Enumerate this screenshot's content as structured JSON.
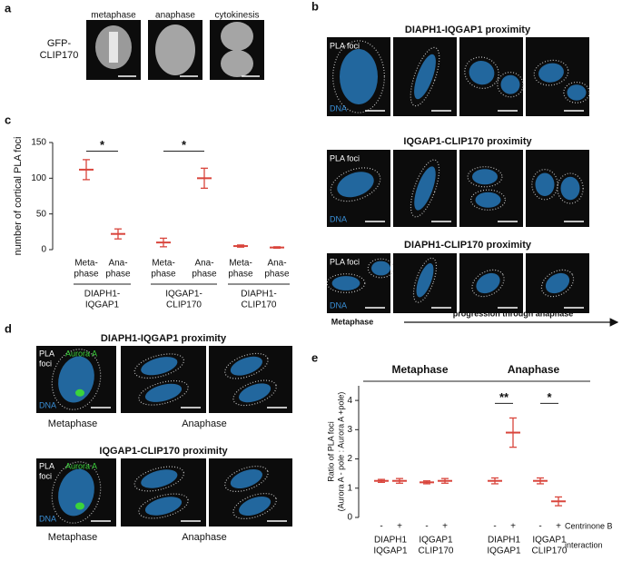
{
  "panel_labels": [
    "a",
    "b",
    "c",
    "d",
    "e"
  ],
  "panel_a": {
    "columns": [
      "metaphase",
      "anaphase",
      "cytokinesis"
    ],
    "row_label": [
      "GFP-",
      "CLIP170"
    ]
  },
  "panel_b": {
    "rows": [
      "DIAPH1-IQGAP1 proximity",
      "IQGAP1-CLIP170 proximity",
      "DIAPH1-CLIP170 proximity"
    ],
    "channels": [
      "PLA foci",
      "DNA"
    ],
    "footer_left": "Metaphase",
    "footer_right": "progression through anaphase"
  },
  "panel_d": {
    "rows": [
      "DIAPH1-IQGAP1 proximity",
      "IQGAP1-CLIP170 proximity"
    ],
    "channels": [
      "PLA",
      "foci",
      "Aurora A",
      "DNA"
    ],
    "captions": [
      "Metaphase",
      "Anaphase"
    ]
  },
  "chart_data": [
    {
      "type": "dot",
      "ylabel": "number of cortical PLA foci",
      "categories": [
        [
          "Meta-",
          "phase"
        ],
        [
          "Ana-",
          "phase"
        ],
        [
          "Meta-",
          "phase"
        ],
        [
          "Ana-",
          "phase"
        ],
        [
          "Meta-",
          "phase"
        ],
        [
          "Ana-",
          "phase"
        ]
      ],
      "groups": [
        [
          "DIAPH1-",
          "IQGAP1"
        ],
        [
          "IQGAP1-",
          "CLIP170"
        ],
        [
          "DIAPH1-",
          "CLIP170"
        ]
      ],
      "values": [
        112,
        22,
        10,
        100,
        5,
        3
      ],
      "errors": [
        14,
        7,
        6,
        14,
        1.5,
        1
      ],
      "color": "#d9453c",
      "ylim": [
        0,
        150
      ],
      "yticks": [
        0,
        50,
        100,
        150
      ],
      "significance": [
        {
          "label": "*",
          "pair": [
            0,
            1
          ],
          "y": 138
        },
        {
          "label": "*",
          "pair": [
            2,
            3
          ],
          "y": 138
        }
      ]
    },
    {
      "type": "dot",
      "ylabel": [
        "Ratio of PLA foci",
        "(Aurora A - pole : Aurora A +pole)"
      ],
      "sections": [
        {
          "label": "Metaphase",
          "groups": [
            0,
            1
          ]
        },
        {
          "label": "Anaphase",
          "groups": [
            2,
            3
          ]
        }
      ],
      "categories": [
        "-",
        "+",
        "-",
        "+",
        "-",
        "+",
        "-",
        "+"
      ],
      "groups": [
        [
          "DIAPH1",
          "IQGAP1"
        ],
        [
          "IQGAP1",
          "CLIP170"
        ],
        [
          "DIAPH1",
          "IQGAP1"
        ],
        [
          "IQGAP1",
          "CLIP170"
        ]
      ],
      "row_labels": [
        "Centrinone B",
        "interaction"
      ],
      "values": [
        1.25,
        1.25,
        1.2,
        1.25,
        1.25,
        2.9,
        1.25,
        0.55
      ],
      "errors": [
        0.05,
        0.08,
        0.05,
        0.08,
        0.1,
        0.5,
        0.1,
        0.15
      ],
      "color": "#d9453c",
      "ylim": [
        0,
        4.5
      ],
      "yticks": [
        0,
        1,
        2,
        3,
        4
      ],
      "significance": [
        {
          "label": "**",
          "pair": [
            4,
            5
          ],
          "y": 3.9
        },
        {
          "label": "*",
          "pair": [
            6,
            7
          ],
          "y": 3.9
        }
      ]
    }
  ]
}
